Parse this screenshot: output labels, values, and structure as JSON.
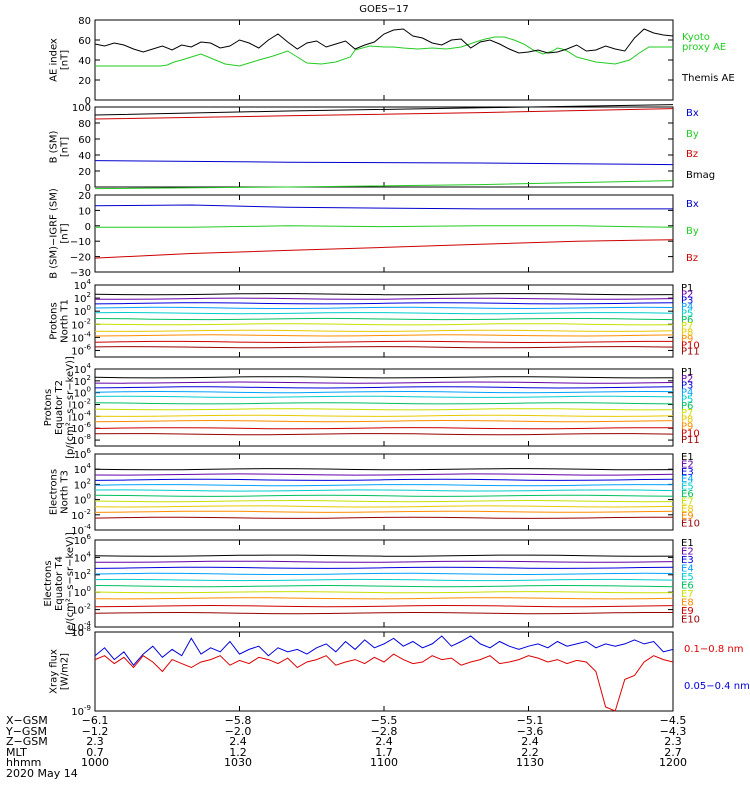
{
  "title": "GOES−17",
  "chart_data": [
    {
      "type": "line",
      "ylabel_lines": [
        "AE index",
        "[nT]"
      ],
      "y_ticks": [
        "0",
        "20",
        "40",
        "60",
        "80"
      ],
      "ylim": [
        0,
        80
      ],
      "series": [
        {
          "name": "Kyoto",
          "label2": "proxy AE",
          "color": "#22cc22",
          "x": [
            0,
            10,
            20,
            30,
            38,
            45,
            48,
            52,
            56,
            62,
            68,
            75,
            82,
            90,
            100,
            110,
            120,
            135,
            150,
            160,
            170,
            185,
            200,
            210,
            220,
            235,
            250,
            265,
            270,
            285,
            300,
            310,
            320,
            335,
            350,
            365,
            380,
            395,
            405,
            415,
            425,
            435,
            445,
            455,
            465,
            475,
            480,
            485,
            490,
            500,
            520,
            540,
            555,
            565,
            575,
            600
          ],
          "values": [
            34,
            34,
            34,
            34,
            34,
            34,
            34,
            34,
            34,
            34,
            34,
            35,
            38,
            40,
            43,
            46,
            42,
            36,
            34,
            37,
            40,
            44,
            49,
            43,
            37,
            36,
            38,
            43,
            50,
            54,
            53,
            53,
            52,
            51,
            52,
            51,
            53,
            58,
            61,
            63,
            63,
            60,
            56,
            50,
            46,
            49,
            52,
            51,
            49,
            43,
            38,
            36,
            40,
            47,
            53,
            53
          ]
        },
        {
          "name": "Themis AE",
          "color": "#000000",
          "x": [
            0,
            10,
            20,
            30,
            40,
            50,
            60,
            70,
            80,
            90,
            100,
            110,
            120,
            130,
            140,
            150,
            160,
            170,
            180,
            190,
            200,
            210,
            220,
            230,
            240,
            250,
            260,
            270,
            280,
            290,
            300,
            310,
            320,
            330,
            340,
            350,
            360,
            370,
            380,
            390,
            400,
            410,
            420,
            430,
            440,
            450,
            460,
            470,
            480,
            490,
            500,
            510,
            520,
            530,
            540,
            550,
            560,
            570,
            580,
            590,
            600
          ],
          "values": [
            56,
            54,
            57,
            55,
            51,
            48,
            51,
            54,
            50,
            55,
            53,
            58,
            57,
            52,
            54,
            60,
            57,
            52,
            60,
            66,
            58,
            51,
            57,
            59,
            53,
            56,
            59,
            51,
            55,
            58,
            66,
            70,
            71,
            64,
            62,
            57,
            55,
            60,
            61,
            52,
            58,
            60,
            56,
            51,
            47,
            48,
            50,
            47,
            48,
            51,
            55,
            49,
            50,
            54,
            51,
            49,
            62,
            71,
            67,
            65,
            64
          ]
        }
      ]
    },
    {
      "type": "line",
      "ylabel_lines": [
        "B (SM)",
        "[nT]"
      ],
      "y_ticks": [
        "0",
        "20",
        "40",
        "60",
        "80",
        "100"
      ],
      "ylim": [
        0,
        100
      ],
      "series": [
        {
          "name": "Bx",
          "color": "#0000cc",
          "x": [
            0,
            200,
            400,
            600
          ],
          "values": [
            33,
            31,
            30,
            28
          ]
        },
        {
          "name": "By",
          "color": "#22cc22",
          "x": [
            0,
            200,
            400,
            600
          ],
          "values": [
            -2,
            0,
            3,
            8
          ]
        },
        {
          "name": "Bz",
          "color": "#cc0000",
          "x": [
            0,
            200,
            400,
            600
          ],
          "values": [
            85,
            89,
            93,
            98
          ]
        },
        {
          "name": "Bmag",
          "color": "#000000",
          "x": [
            0,
            200,
            400,
            600
          ],
          "values": [
            90,
            95,
            99,
            103
          ]
        }
      ]
    },
    {
      "type": "line",
      "ylabel_lines": [
        "B (SM)−IGRF (SM)",
        "[nT]"
      ],
      "y_ticks": [
        "−30",
        "−20",
        "−10",
        "0",
        "10",
        "20"
      ],
      "ylim": [
        -30,
        20
      ],
      "series": [
        {
          "name": "Bx",
          "color": "#0000cc",
          "x": [
            0,
            100,
            200,
            300,
            400,
            500,
            600
          ],
          "values": [
            13,
            13.5,
            12,
            11.5,
            11,
            11,
            11
          ]
        },
        {
          "name": "By",
          "color": "#22cc22",
          "x": [
            0,
            100,
            200,
            300,
            400,
            500,
            600
          ],
          "values": [
            -1,
            -1,
            0,
            -0.5,
            0,
            0,
            -1
          ]
        },
        {
          "name": "Bz",
          "color": "#cc0000",
          "x": [
            0,
            100,
            200,
            300,
            400,
            500,
            600
          ],
          "values": [
            -21,
            -18,
            -16,
            -14,
            -12,
            -10,
            -9
          ]
        }
      ]
    },
    {
      "type": "line",
      "scale": "log",
      "ylabel_lines": [
        "Protons",
        "North T1"
      ],
      "y_exponents": [
        -6,
        -4,
        -2,
        0,
        2,
        4
      ],
      "ylim_exp": [
        -7,
        4
      ],
      "series_logvalues": [
        {
          "name": "P1",
          "color": "#000000",
          "v": 2.6
        },
        {
          "name": "P2",
          "color": "#6600aa",
          "v": 1.9
        },
        {
          "name": "P3",
          "color": "#0000dd",
          "v": 1.2
        },
        {
          "name": "P4",
          "color": "#00a0ff",
          "v": 0.5
        },
        {
          "name": "P5",
          "color": "#00cccc",
          "v": -0.3
        },
        {
          "name": "P6",
          "color": "#00c060",
          "v": -1.2
        },
        {
          "name": "P7",
          "color": "#c8e000",
          "v": -2.0
        },
        {
          "name": "P8",
          "color": "#e8c800",
          "v": -3.0
        },
        {
          "name": "P9",
          "color": "#ff8c00",
          "v": -3.7
        },
        {
          "name": "P10",
          "color": "#cc0000",
          "v": -4.7
        },
        {
          "name": "P11",
          "color": "#990000",
          "v": -5.5
        }
      ]
    },
    {
      "type": "line",
      "scale": "log",
      "ylabel_lines": [
        "Protons",
        "Equator T2",
        "[p/(cm²−s−sr−keV)]"
      ],
      "y_exponents": [
        -8,
        -6,
        -4,
        -2,
        0,
        2,
        4
      ],
      "ylim_exp": [
        -9,
        4
      ],
      "series_logvalues": [
        {
          "name": "P1",
          "color": "#000000",
          "v": 2.6
        },
        {
          "name": "P2",
          "color": "#6600aa",
          "v": 1.7
        },
        {
          "name": "P3",
          "color": "#0000dd",
          "v": 0.9
        },
        {
          "name": "P4",
          "color": "#00a0ff",
          "v": 0.1
        },
        {
          "name": "P5",
          "color": "#00cccc",
          "v": -0.7
        },
        {
          "name": "P6",
          "color": "#00c060",
          "v": -1.8
        },
        {
          "name": "P7",
          "color": "#c8e000",
          "v": -2.8
        },
        {
          "name": "P8",
          "color": "#e8c800",
          "v": -3.9
        },
        {
          "name": "P9",
          "color": "#ff8c00",
          "v": -4.8
        },
        {
          "name": "P10",
          "color": "#cc0000",
          "v": -6.0
        },
        {
          "name": "P11",
          "color": "#990000",
          "v": -7.0
        }
      ]
    },
    {
      "type": "line",
      "scale": "log",
      "ylabel_lines": [
        "Electrons",
        "North T3"
      ],
      "y_exponents": [
        -4,
        -2,
        0,
        2,
        4,
        6
      ],
      "ylim_exp": [
        -4,
        6
      ],
      "series_logvalues": [
        {
          "name": "E1",
          "color": "#000000",
          "v": 4.0
        },
        {
          "name": "E2",
          "color": "#6600aa",
          "v": 3.3
        },
        {
          "name": "E3",
          "color": "#0000dd",
          "v": 2.6
        },
        {
          "name": "E4",
          "color": "#00a0ff",
          "v": 1.9
        },
        {
          "name": "E5",
          "color": "#00cccc",
          "v": 1.2
        },
        {
          "name": "E6",
          "color": "#00c060",
          "v": 0.5
        },
        {
          "name": "E7",
          "color": "#c8e000",
          "v": -0.2
        },
        {
          "name": "E8",
          "color": "#e8c800",
          "v": -0.9
        },
        {
          "name": "E9",
          "color": "#ff8c00",
          "v": -1.6
        },
        {
          "name": "E10",
          "color": "#990000",
          "v": -2.4
        }
      ]
    },
    {
      "type": "line",
      "scale": "log",
      "ylabel_lines": [
        "Electrons",
        "Equator T4",
        "[e/(cm²−s−sr−keV)]"
      ],
      "y_exponents": [
        -4,
        -2,
        0,
        2,
        4,
        6
      ],
      "ylim_exp": [
        -4,
        6
      ],
      "series_logvalues": [
        {
          "name": "E1",
          "color": "#000000",
          "v": 4.2
        },
        {
          "name": "E2",
          "color": "#6600aa",
          "v": 3.5
        },
        {
          "name": "E3",
          "color": "#0000dd",
          "v": 2.8
        },
        {
          "name": "E4",
          "color": "#00a0ff",
          "v": 2.1
        },
        {
          "name": "E5",
          "color": "#00cccc",
          "v": 1.4
        },
        {
          "name": "E6",
          "color": "#00c060",
          "v": 0.7
        },
        {
          "name": "E7",
          "color": "#c8e000",
          "v": 0.0
        },
        {
          "name": "E8",
          "color": "#ff8c00",
          "v": -0.7
        },
        {
          "name": "E9",
          "color": "#cc0000",
          "v": -1.6
        },
        {
          "name": "E10",
          "color": "#990000",
          "v": -2.4
        }
      ]
    },
    {
      "type": "line",
      "scale": "log",
      "ylabel_lines": [
        "Xray flux",
        "[W/m2]"
      ],
      "y_exponents": [
        -9,
        -8
      ],
      "ylim_exp": [
        -9,
        -8
      ],
      "series": [
        {
          "name": "0.1−0.8 nm",
          "color": "#dd0000",
          "x": [
            0,
            10,
            20,
            30,
            40,
            50,
            60,
            70,
            80,
            90,
            100,
            110,
            120,
            130,
            140,
            150,
            160,
            170,
            180,
            190,
            200,
            210,
            220,
            230,
            240,
            250,
            260,
            270,
            280,
            290,
            300,
            310,
            320,
            330,
            340,
            350,
            360,
            370,
            380,
            390,
            400,
            410,
            420,
            430,
            440,
            450,
            460,
            470,
            480,
            490,
            500,
            510,
            520,
            530,
            540,
            550,
            560,
            570,
            580,
            590,
            600
          ],
          "values": [
            -8.35,
            -8.3,
            -8.4,
            -8.32,
            -8.45,
            -8.3,
            -8.38,
            -8.5,
            -8.35,
            -8.4,
            -8.45,
            -8.38,
            -8.35,
            -8.3,
            -8.42,
            -8.36,
            -8.4,
            -8.32,
            -8.35,
            -8.4,
            -8.33,
            -8.45,
            -8.38,
            -8.35,
            -8.3,
            -8.42,
            -8.38,
            -8.35,
            -8.4,
            -8.32,
            -8.38,
            -8.28,
            -8.35,
            -8.4,
            -8.38,
            -8.3,
            -8.35,
            -8.33,
            -8.42,
            -8.38,
            -8.35,
            -8.3,
            -8.4,
            -8.38,
            -8.35,
            -8.3,
            -8.33,
            -8.38,
            -8.35,
            -8.4,
            -8.36,
            -8.38,
            -8.5,
            -8.95,
            -9.0,
            -8.6,
            -8.55,
            -8.38,
            -8.3,
            -8.35,
            -8.38
          ]
        },
        {
          "name": "0.05−0.4 nm",
          "color": "#0000dd",
          "x": [
            0,
            10,
            20,
            30,
            40,
            50,
            60,
            70,
            80,
            90,
            100,
            110,
            120,
            130,
            140,
            150,
            160,
            170,
            180,
            190,
            200,
            210,
            220,
            230,
            240,
            250,
            260,
            270,
            280,
            290,
            300,
            310,
            320,
            330,
            340,
            350,
            360,
            370,
            380,
            390,
            400,
            410,
            420,
            430,
            440,
            450,
            460,
            470,
            480,
            490,
            500,
            510,
            520,
            530,
            540,
            550,
            560,
            570,
            580,
            590,
            600
          ],
          "values": [
            -8.3,
            -8.2,
            -8.35,
            -8.25,
            -8.42,
            -8.28,
            -8.18,
            -8.32,
            -8.22,
            -8.3,
            -8.08,
            -8.28,
            -8.2,
            -8.25,
            -8.12,
            -8.28,
            -8.22,
            -8.18,
            -8.3,
            -8.2,
            -8.25,
            -8.22,
            -8.28,
            -8.2,
            -8.15,
            -8.25,
            -8.12,
            -8.22,
            -8.1,
            -8.2,
            -8.15,
            -8.08,
            -8.18,
            -8.12,
            -8.2,
            -8.15,
            -8.05,
            -8.18,
            -8.12,
            -8.05,
            -8.15,
            -8.2,
            -8.12,
            -8.18,
            -8.22,
            -8.18,
            -8.15,
            -8.2,
            -8.12,
            -8.18,
            -8.15,
            -8.12,
            -8.2,
            -8.15,
            -8.18,
            -8.15,
            -8.1,
            -8.15,
            -8.12,
            -8.25,
            -8.22
          ]
        }
      ]
    }
  ],
  "footer": {
    "rows": [
      {
        "label": "X−GSM",
        "values": [
          "−6.1",
          "−5.8",
          "−5.5",
          "−5.1",
          "−4.5"
        ]
      },
      {
        "label": "Y−GSM",
        "values": [
          "−1.2",
          "−2.0",
          "−2.8",
          "−3.6",
          "−4.3"
        ]
      },
      {
        "label": "Z−GSM",
        "values": [
          "2.3",
          "2.4",
          "2.4",
          "2.4",
          "2.3"
        ]
      },
      {
        "label": "MLT",
        "values": [
          "0.7",
          "1.2",
          "1.7",
          "2.2",
          "2.7"
        ]
      },
      {
        "label": "hhmm",
        "values": [
          "1000",
          "1030",
          "1100",
          "1130",
          "1200"
        ]
      }
    ],
    "date": "2020 May 14"
  }
}
